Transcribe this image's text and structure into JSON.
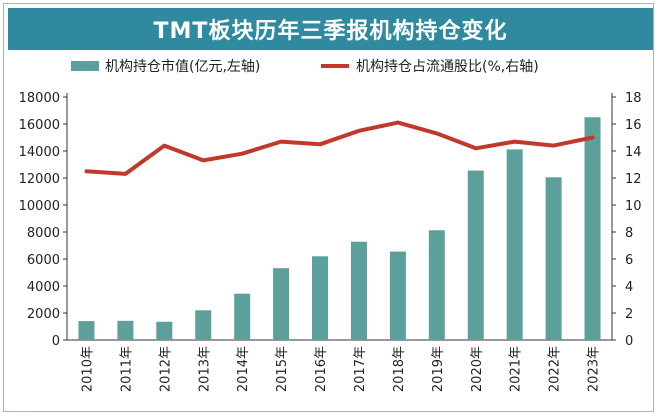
{
  "chart_data": {
    "type": "bar+line",
    "title": "TMT板块历年三季报机构持仓变化",
    "categories": [
      "2010年",
      "2011年",
      "2012年",
      "2013年",
      "2014年",
      "2015年",
      "2016年",
      "2017年",
      "2018年",
      "2019年",
      "2020年",
      "2021年",
      "2022年",
      "2023年"
    ],
    "series": [
      {
        "name": "机构持仓市值(亿元,左轴)",
        "type": "bar",
        "axis": "left",
        "color": "#5c9f9b",
        "values": [
          1400,
          1420,
          1350,
          2200,
          3430,
          5320,
          6200,
          7280,
          6550,
          8130,
          12550,
          14120,
          12050,
          16500
        ]
      },
      {
        "name": "机构持仓占流通股比(%,右轴)",
        "type": "line",
        "axis": "right",
        "color": "#c0392b",
        "values": [
          12.5,
          12.3,
          14.4,
          13.3,
          13.8,
          14.7,
          14.5,
          15.5,
          16.1,
          15.3,
          14.2,
          14.7,
          14.4,
          15.0
        ]
      }
    ],
    "y_left": {
      "ylim": [
        0,
        18000
      ],
      "ticks": [
        "0",
        "2000",
        "4000",
        "6000",
        "8000",
        "10000",
        "12000",
        "14000",
        "16000",
        "18000"
      ]
    },
    "y_right": {
      "ylim": [
        0,
        18
      ],
      "ticks": [
        "0",
        "2",
        "4",
        "6",
        "8",
        "10",
        "12",
        "14",
        "16",
        "18"
      ]
    },
    "legend_position": "top",
    "grid": false
  }
}
